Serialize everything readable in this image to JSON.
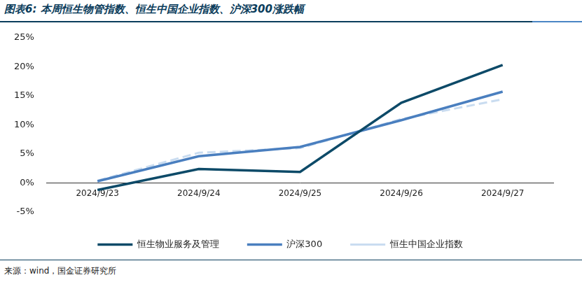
{
  "chart_data": {
    "type": "line",
    "title": "图表6: 本周恒生物管指数、恒生中国企业指数、沪深300涨跌幅",
    "source": "来源：wind，国金证券研究所",
    "categories": [
      "2024/9/23",
      "2024/9/24",
      "2024/9/25",
      "2024/9/26",
      "2024/9/27"
    ],
    "series": [
      {
        "name": "恒生物业服务及管理",
        "color": "#0d4a68",
        "line_style": "solid",
        "values": [
          -1.2,
          2.4,
          1.9,
          13.8,
          20.3
        ]
      },
      {
        "name": "沪深300",
        "color": "#4a7fbf",
        "line_style": "solid",
        "values": [
          0.3,
          4.6,
          6.2,
          10.8,
          15.7
        ]
      },
      {
        "name": "恒生中国企业指数",
        "color": "#c9dcf0",
        "line_style": "dashed",
        "values": [
          0.4,
          5.2,
          6.0,
          11.0,
          14.4
        ]
      }
    ],
    "ylim": [
      -5,
      25
    ],
    "yticks": [
      {
        "value": -5,
        "label": "-5%"
      },
      {
        "value": 0,
        "label": "0%"
      },
      {
        "value": 5,
        "label": "5%"
      },
      {
        "value": 10,
        "label": "10%"
      },
      {
        "value": 15,
        "label": "15%"
      },
      {
        "value": 20,
        "label": "20%"
      },
      {
        "value": 25,
        "label": "25%"
      }
    ],
    "grid": false,
    "legend": "bottom"
  }
}
